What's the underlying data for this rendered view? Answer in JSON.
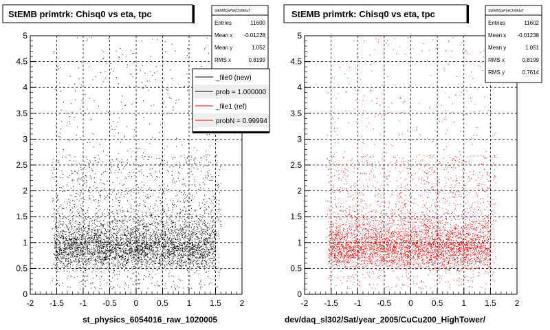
{
  "chart_data": [
    {
      "type": "scatter",
      "title": "StEMB primtrk: Chisq0 vs eta, tpc",
      "xlabel": "st_physics_6054016_raw_1020005",
      "ylabel": "",
      "xlim": [
        -2,
        2
      ],
      "ylim": [
        0,
        5
      ],
      "xticks": [
        "-2",
        "-1.5",
        "-1",
        "-0.5",
        "0",
        "0.5",
        "1",
        "1.5",
        "2"
      ],
      "yticks": [
        "0",
        "0.5",
        "1",
        "1.5",
        "2",
        "2.5",
        "3",
        "3.5",
        "4",
        "4.5",
        "5"
      ],
      "grid": true,
      "marker_color": "#000000",
      "density_note": "points densest for eta in [-1.5, 1.5] and Chisq0 in [0.3, 1.3]",
      "stats": {
        "name": "StEMBQaPtrkChi0EtaT",
        "rows": [
          {
            "label": "Entries",
            "value": "11600"
          },
          {
            "label": "Mean x",
            "value": "-0.01228"
          },
          {
            "label": "Mean y",
            "value": "1.052"
          },
          {
            "label": "RMS x",
            "value": "0.8199"
          }
        ]
      },
      "legend": [
        {
          "label": "_file0 (new)",
          "color": "#000000"
        },
        {
          "label": "prob = 1.000000",
          "color": "#000000"
        },
        {
          "label": "_file1 (ref)",
          "color": "#ff0000"
        },
        {
          "label": "probN = 0.99994",
          "color": "#ff0000"
        }
      ]
    },
    {
      "type": "scatter",
      "title": "StEMB primtrk: Chisq0 vs eta, tpc",
      "xlabel": "dev/daq_sl302/Sat/year_2005/CuCu200_HighTower/",
      "ylabel": "",
      "xlim": [
        -2,
        2
      ],
      "ylim": [
        0,
        5
      ],
      "xticks": [
        "-2",
        "-1.5",
        "-1",
        "-0.5",
        "0",
        "0.5",
        "1",
        "1.5",
        "2"
      ],
      "yticks": [
        "0",
        "0.5",
        "1",
        "1.5",
        "2",
        "2.5",
        "3",
        "3.5",
        "4",
        "4.5",
        "5"
      ],
      "grid": true,
      "marker_color": "#ff0000",
      "density_note": "points densest for eta in [-1.5, 1.5] and Chisq0 in [0.3, 1.3]",
      "stats": {
        "name": "StEMBQaPtrkChi0EtaT",
        "rows": [
          {
            "label": "Entries",
            "value": "11602"
          },
          {
            "label": "Mean x",
            "value": "-0.01238"
          },
          {
            "label": "Mean y",
            "value": "1.051"
          },
          {
            "label": "RMS x",
            "value": "0.8199"
          },
          {
            "label": "RMS y",
            "value": "0.7614"
          }
        ]
      }
    }
  ]
}
